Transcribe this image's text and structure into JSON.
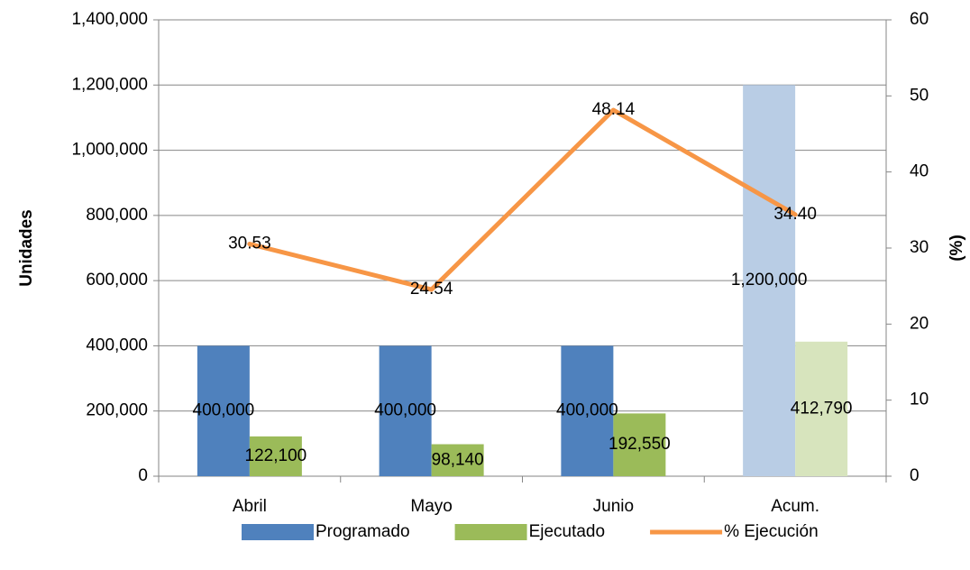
{
  "chart_data": {
    "type": "bar_line",
    "categories": [
      "Abril",
      "Mayo",
      "Junio",
      "Acum."
    ],
    "y_label": "Unidades",
    "y2_label": "(%)",
    "ylim": [
      0,
      1400000
    ],
    "yticks": [
      0,
      {
        "value": 200000,
        "label": "200,000"
      },
      {
        "value": 400000,
        "label": "400,000"
      },
      {
        "value": 600000,
        "label": "600,000"
      },
      {
        "value": 800000,
        "label": "800,000"
      },
      {
        "value": 1000000,
        "label": "1,000,000"
      },
      {
        "value": 1200000,
        "label": "1,200,000"
      },
      {
        "value": 1400000,
        "label": "1,400,000"
      }
    ],
    "y2lim": [
      0,
      60
    ],
    "y2ticks": [
      0,
      10,
      20,
      30,
      40,
      50,
      60
    ],
    "grid": true,
    "legend": "bottom",
    "series": [
      {
        "name": "Programado",
        "type": "bar",
        "color": "#4f81bd",
        "colors": [
          "#4f81bd",
          "#4f81bd",
          "#4f81bd",
          "#b9cde5"
        ],
        "values": [
          400000,
          400000,
          400000,
          1200000
        ],
        "value_labels": [
          "400,000",
          "400,000",
          "400,000",
          "1,200,000"
        ]
      },
      {
        "name": "Ejecutado",
        "type": "bar",
        "color": "#9bbb59",
        "colors": [
          "#9bbb59",
          "#9bbb59",
          "#9bbb59",
          "#d7e4bd"
        ],
        "values": [
          122100,
          98140,
          192550,
          412790
        ],
        "value_labels": [
          "122,100",
          "98,140",
          "192,550",
          "412,790"
        ]
      },
      {
        "name": "% Ejecución",
        "type": "line",
        "axis": "y2",
        "color": "#f79646",
        "values": [
          30.53,
          24.54,
          48.14,
          34.4
        ],
        "value_labels": [
          "30.53",
          "24.54",
          "48.14",
          "34.40"
        ]
      }
    ]
  }
}
